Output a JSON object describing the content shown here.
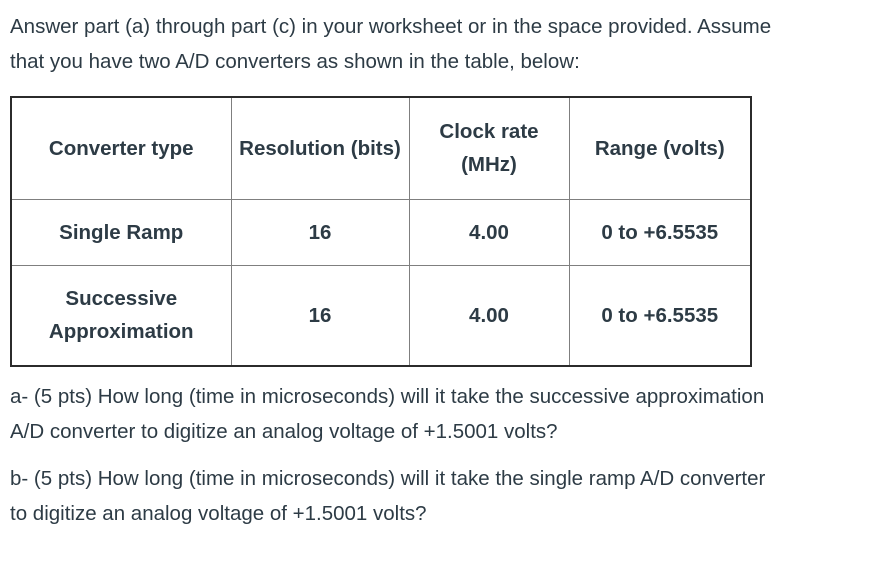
{
  "document": {
    "intro": {
      "lines": [
        "Answer part (a) through part (c) in your worksheet or in the space provided. Assume",
        "that you have two A/D converters as shown in the table, below:"
      ]
    },
    "table": {
      "headers": [
        "Converter type",
        "Resolution (bits)",
        "Clock rate (MHz)",
        "Range (volts)"
      ],
      "rows": [
        [
          "Single Ramp",
          "16",
          "4.00",
          "0 to +6.5535"
        ],
        [
          "Successive Approximation",
          "16",
          "4.00",
          "0 to +6.5535"
        ]
      ]
    },
    "question_a": {
      "lines": [
        "a- (5 pts) How long (time in microseconds) will it take the successive approximation",
        "A/D converter to digitize an analog voltage of +1.5001 volts?"
      ]
    },
    "question_b": {
      "lines": [
        "b- (5 pts) How long (time in microseconds) will it take the single ramp A/D converter",
        "to digitize an analog voltage of +1.5001 volts?"
      ]
    },
    "colors": {
      "text": "#2d3b45",
      "table_outer_border": "#2b2b2b",
      "table_inner_border": "#7f7f7f",
      "background": "#ffffff"
    }
  }
}
